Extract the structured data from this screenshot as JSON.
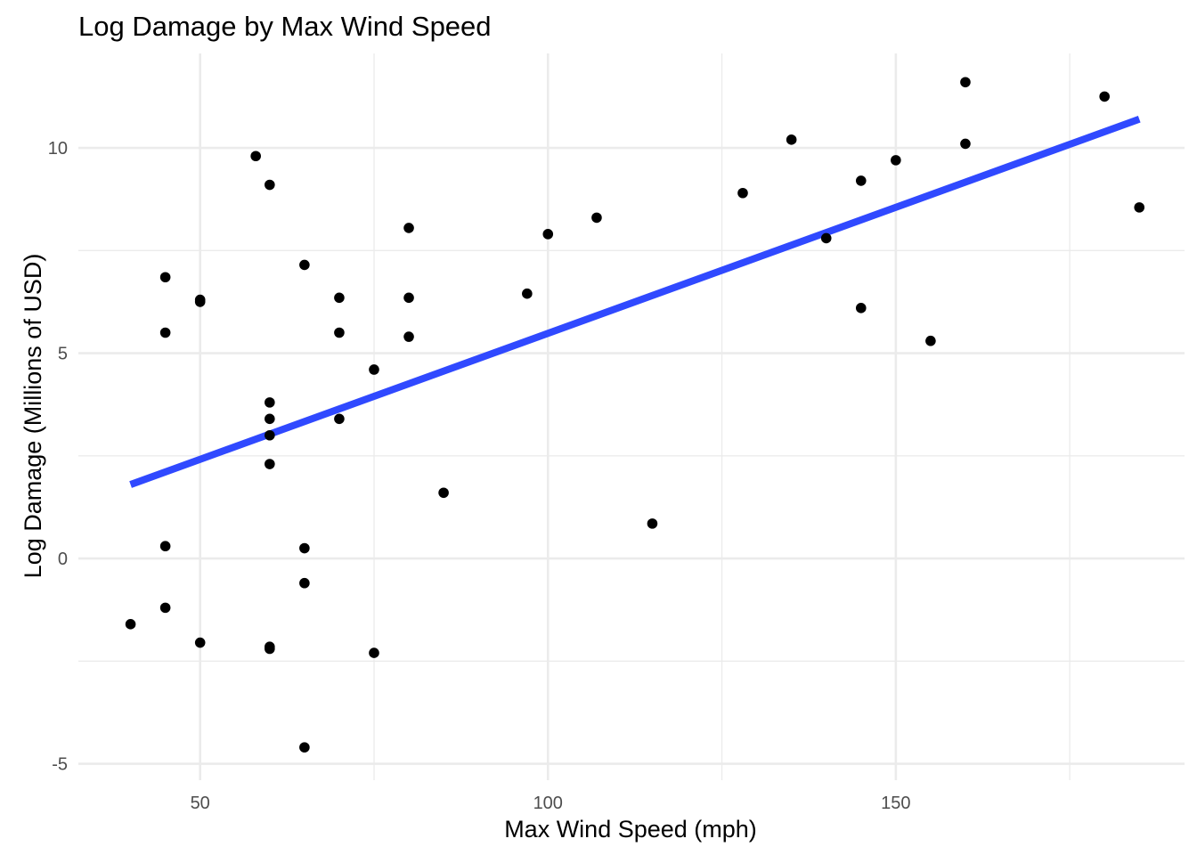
{
  "chart_data": {
    "type": "scatter",
    "title": "Log Damage by Max Wind Speed",
    "xlabel": "Max Wind Speed (mph)",
    "ylabel": "Log Damage (Millions of USD)",
    "xlim": [
      32.5,
      191.5
    ],
    "ylim": [
      -5.4,
      12.3
    ],
    "x_ticks": [
      50,
      100,
      150
    ],
    "x_tick_labels": [
      "50",
      "100",
      "150"
    ],
    "x_minor_ticks": [
      75,
      125,
      175
    ],
    "y_ticks": [
      -5,
      0,
      5,
      10
    ],
    "y_tick_labels": [
      "-5",
      "0",
      "5",
      "10"
    ],
    "y_minor_ticks": [
      -2.5,
      2.5,
      7.5
    ],
    "grid": true,
    "legend": "none",
    "points": [
      {
        "x": 40,
        "y": -1.6
      },
      {
        "x": 45,
        "y": 6.85
      },
      {
        "x": 45,
        "y": 5.5
      },
      {
        "x": 45,
        "y": 0.3
      },
      {
        "x": 45,
        "y": -1.2
      },
      {
        "x": 50,
        "y": 6.3
      },
      {
        "x": 50,
        "y": 6.25
      },
      {
        "x": 50,
        "y": -2.05
      },
      {
        "x": 58,
        "y": 9.8
      },
      {
        "x": 60,
        "y": 9.1
      },
      {
        "x": 60,
        "y": 3.8
      },
      {
        "x": 60,
        "y": 3.4
      },
      {
        "x": 60,
        "y": 3.0
      },
      {
        "x": 60,
        "y": 2.3
      },
      {
        "x": 60,
        "y": -2.15
      },
      {
        "x": 60,
        "y": -2.2
      },
      {
        "x": 65,
        "y": 7.15
      },
      {
        "x": 65,
        "y": 0.25
      },
      {
        "x": 65,
        "y": -0.6
      },
      {
        "x": 65,
        "y": -4.6
      },
      {
        "x": 70,
        "y": 6.35
      },
      {
        "x": 70,
        "y": 5.5
      },
      {
        "x": 70,
        "y": 3.4
      },
      {
        "x": 75,
        "y": 4.6
      },
      {
        "x": 75,
        "y": -2.3
      },
      {
        "x": 80,
        "y": 8.05
      },
      {
        "x": 80,
        "y": 6.35
      },
      {
        "x": 80,
        "y": 5.4
      },
      {
        "x": 85,
        "y": 1.6
      },
      {
        "x": 97,
        "y": 6.45
      },
      {
        "x": 100,
        "y": 7.9
      },
      {
        "x": 107,
        "y": 8.3
      },
      {
        "x": 115,
        "y": 0.85
      },
      {
        "x": 128,
        "y": 8.9
      },
      {
        "x": 135,
        "y": 10.2
      },
      {
        "x": 140,
        "y": 7.8
      },
      {
        "x": 145,
        "y": 9.2
      },
      {
        "x": 145,
        "y": 6.1
      },
      {
        "x": 150,
        "y": 9.7
      },
      {
        "x": 155,
        "y": 5.3
      },
      {
        "x": 160,
        "y": 11.6
      },
      {
        "x": 160,
        "y": 10.1
      },
      {
        "x": 180,
        "y": 11.25
      },
      {
        "x": 185,
        "y": 8.55
      }
    ],
    "trend_line": {
      "x": [
        40,
        185
      ],
      "y": [
        1.8,
        10.7
      ],
      "color": "#3049ff"
    },
    "point_color": "#000000"
  }
}
